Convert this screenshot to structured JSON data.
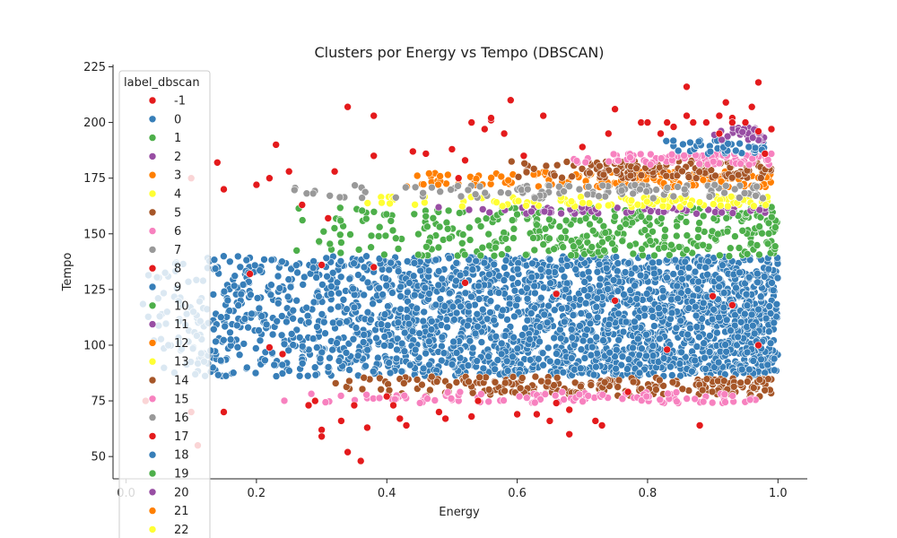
{
  "chart_data": {
    "type": "scatter",
    "title": "Clusters por Energy vs Tempo (DBSCAN)",
    "xlabel": "Energy",
    "ylabel": "Tempo",
    "xlim": [
      -0.02,
      1.045
    ],
    "ylim": [
      40,
      226
    ],
    "xticks": [
      0.0,
      0.2,
      0.4,
      0.6,
      0.8,
      1.0
    ],
    "xtick_labels": [
      "0.0",
      "0.2",
      "0.4",
      "0.6",
      "0.8",
      "1.0"
    ],
    "yticks": [
      50,
      75,
      100,
      125,
      150,
      175,
      200,
      225
    ],
    "ytick_labels": [
      "50",
      "75",
      "100",
      "125",
      "150",
      "175",
      "200",
      "225"
    ],
    "grid": false,
    "legend": {
      "title": "label_dbscan",
      "placement": "upper-left",
      "entries": [
        {
          "label": "-1",
          "color": "#e41a1c"
        },
        {
          "label": "0",
          "color": "#377eb8"
        },
        {
          "label": "1",
          "color": "#4daf4a"
        },
        {
          "label": "2",
          "color": "#984ea3"
        },
        {
          "label": "3",
          "color": "#ff7f00"
        },
        {
          "label": "4",
          "color": "#ffff33"
        },
        {
          "label": "5",
          "color": "#a65628"
        },
        {
          "label": "6",
          "color": "#f781bf"
        },
        {
          "label": "7",
          "color": "#999999"
        },
        {
          "label": "8",
          "color": "#e41a1c"
        },
        {
          "label": "9",
          "color": "#377eb8"
        },
        {
          "label": "10",
          "color": "#4daf4a"
        },
        {
          "label": "11",
          "color": "#984ea3"
        },
        {
          "label": "12",
          "color": "#ff7f00"
        },
        {
          "label": "13",
          "color": "#ffff33"
        },
        {
          "label": "14",
          "color": "#a65628"
        },
        {
          "label": "15",
          "color": "#f781bf"
        },
        {
          "label": "16",
          "color": "#999999"
        },
        {
          "label": "17",
          "color": "#e41a1c"
        },
        {
          "label": "18",
          "color": "#377eb8"
        },
        {
          "label": "19",
          "color": "#4daf4a"
        },
        {
          "label": "20",
          "color": "#984ea3"
        },
        {
          "label": "21",
          "color": "#ff7f00"
        },
        {
          "label": "22",
          "color": "#ffff33"
        }
      ]
    },
    "series": [
      {
        "label": "-1",
        "color": "#e41a1c",
        "points": [
          [
            0.03,
            75
          ],
          [
            0.1,
            175
          ],
          [
            0.1,
            70
          ],
          [
            0.11,
            55
          ],
          [
            0.14,
            182
          ],
          [
            0.15,
            170
          ],
          [
            0.15,
            70
          ],
          [
            0.19,
            132
          ],
          [
            0.2,
            172
          ],
          [
            0.22,
            99
          ],
          [
            0.22,
            175
          ],
          [
            0.23,
            190
          ],
          [
            0.24,
            96
          ],
          [
            0.25,
            178
          ],
          [
            0.27,
            163
          ],
          [
            0.28,
            73
          ],
          [
            0.29,
            75
          ],
          [
            0.3,
            62
          ],
          [
            0.3,
            59
          ],
          [
            0.3,
            136
          ],
          [
            0.31,
            157
          ],
          [
            0.32,
            178
          ],
          [
            0.33,
            66
          ],
          [
            0.34,
            52
          ],
          [
            0.34,
            207
          ],
          [
            0.35,
            73
          ],
          [
            0.36,
            48
          ],
          [
            0.37,
            63
          ],
          [
            0.38,
            203
          ],
          [
            0.38,
            185
          ],
          [
            0.38,
            135
          ],
          [
            0.4,
            77
          ],
          [
            0.41,
            73
          ],
          [
            0.42,
            67
          ],
          [
            0.43,
            64
          ],
          [
            0.44,
            187
          ],
          [
            0.46,
            186
          ],
          [
            0.48,
            70
          ],
          [
            0.49,
            67
          ],
          [
            0.5,
            188
          ],
          [
            0.51,
            175
          ],
          [
            0.52,
            183
          ],
          [
            0.53,
            200
          ],
          [
            0.53,
            68
          ],
          [
            0.54,
            75
          ],
          [
            0.55,
            197
          ],
          [
            0.56,
            201
          ],
          [
            0.56,
            202
          ],
          [
            0.58,
            195
          ],
          [
            0.59,
            210
          ],
          [
            0.6,
            69
          ],
          [
            0.61,
            185
          ],
          [
            0.63,
            69
          ],
          [
            0.64,
            203
          ],
          [
            0.65,
            66
          ],
          [
            0.66,
            74
          ],
          [
            0.68,
            60
          ],
          [
            0.68,
            71
          ],
          [
            0.7,
            189
          ],
          [
            0.72,
            66
          ],
          [
            0.73,
            64
          ],
          [
            0.74,
            195
          ],
          [
            0.75,
            206
          ],
          [
            0.77,
            79
          ],
          [
            0.79,
            200
          ],
          [
            0.8,
            200
          ],
          [
            0.82,
            195
          ],
          [
            0.83,
            200
          ],
          [
            0.84,
            198
          ],
          [
            0.86,
            216
          ],
          [
            0.86,
            203
          ],
          [
            0.87,
            200
          ],
          [
            0.88,
            64
          ],
          [
            0.89,
            200
          ],
          [
            0.9,
            122
          ],
          [
            0.91,
            195
          ],
          [
            0.91,
            203
          ],
          [
            0.92,
            209
          ],
          [
            0.93,
            202
          ],
          [
            0.93,
            200
          ],
          [
            0.95,
            200
          ],
          [
            0.96,
            207
          ],
          [
            0.97,
            218
          ],
          [
            0.97,
            196
          ],
          [
            0.98,
            186
          ],
          [
            0.99,
            197
          ],
          [
            0.97,
            100
          ],
          [
            0.52,
            128
          ],
          [
            0.66,
            123
          ],
          [
            0.75,
            120
          ],
          [
            0.83,
            98
          ],
          [
            0.93,
            118
          ]
        ]
      }
    ],
    "clusters": [
      {
        "label": "0",
        "color": "#377eb8",
        "x_range": [
          0.02,
          1.0
        ],
        "y_range": [
          86,
          140
        ]
      },
      {
        "label": "1",
        "color": "#4daf4a",
        "x_range": [
          0.25,
          1.0
        ],
        "y_range": [
          140,
          162
        ]
      },
      {
        "label": "2",
        "color": "#984ea3",
        "x_range": [
          0.46,
          0.99
        ],
        "y_range": [
          159,
          162
        ]
      },
      {
        "label": "3",
        "color": "#ff7f00",
        "x_range": [
          0.42,
          0.99
        ],
        "y_range": [
          171,
          178
        ]
      },
      {
        "label": "4",
        "color": "#ffff33",
        "x_range": [
          0.34,
          0.99
        ],
        "y_range": [
          162,
          167
        ]
      },
      {
        "label": "5",
        "color": "#a65628",
        "x_range": [
          0.3,
          0.99
        ],
        "y_range": [
          77,
          86
        ]
      },
      {
        "label": "6",
        "color": "#f781bf",
        "x_range": [
          0.16,
          0.97
        ],
        "y_range": [
          74,
          79
        ]
      },
      {
        "label": "7",
        "color": "#999999",
        "x_range": [
          0.25,
          0.98
        ],
        "y_range": [
          166,
          172
        ]
      },
      {
        "label": "8",
        "color": "#a65628",
        "x_range": [
          0.55,
          0.99
        ],
        "y_range": [
          175,
          183
        ]
      },
      {
        "label": "9",
        "color": "#f781bf",
        "x_range": [
          0.67,
          0.99
        ],
        "y_range": [
          181,
          186
        ]
      },
      {
        "label": "10",
        "color": "#377eb8",
        "x_range": [
          0.8,
          0.98
        ],
        "y_range": [
          186,
          192
        ]
      },
      {
        "label": "11",
        "color": "#984ea3",
        "x_range": [
          0.9,
          0.98
        ],
        "y_range": [
          192,
          198
        ]
      }
    ]
  }
}
